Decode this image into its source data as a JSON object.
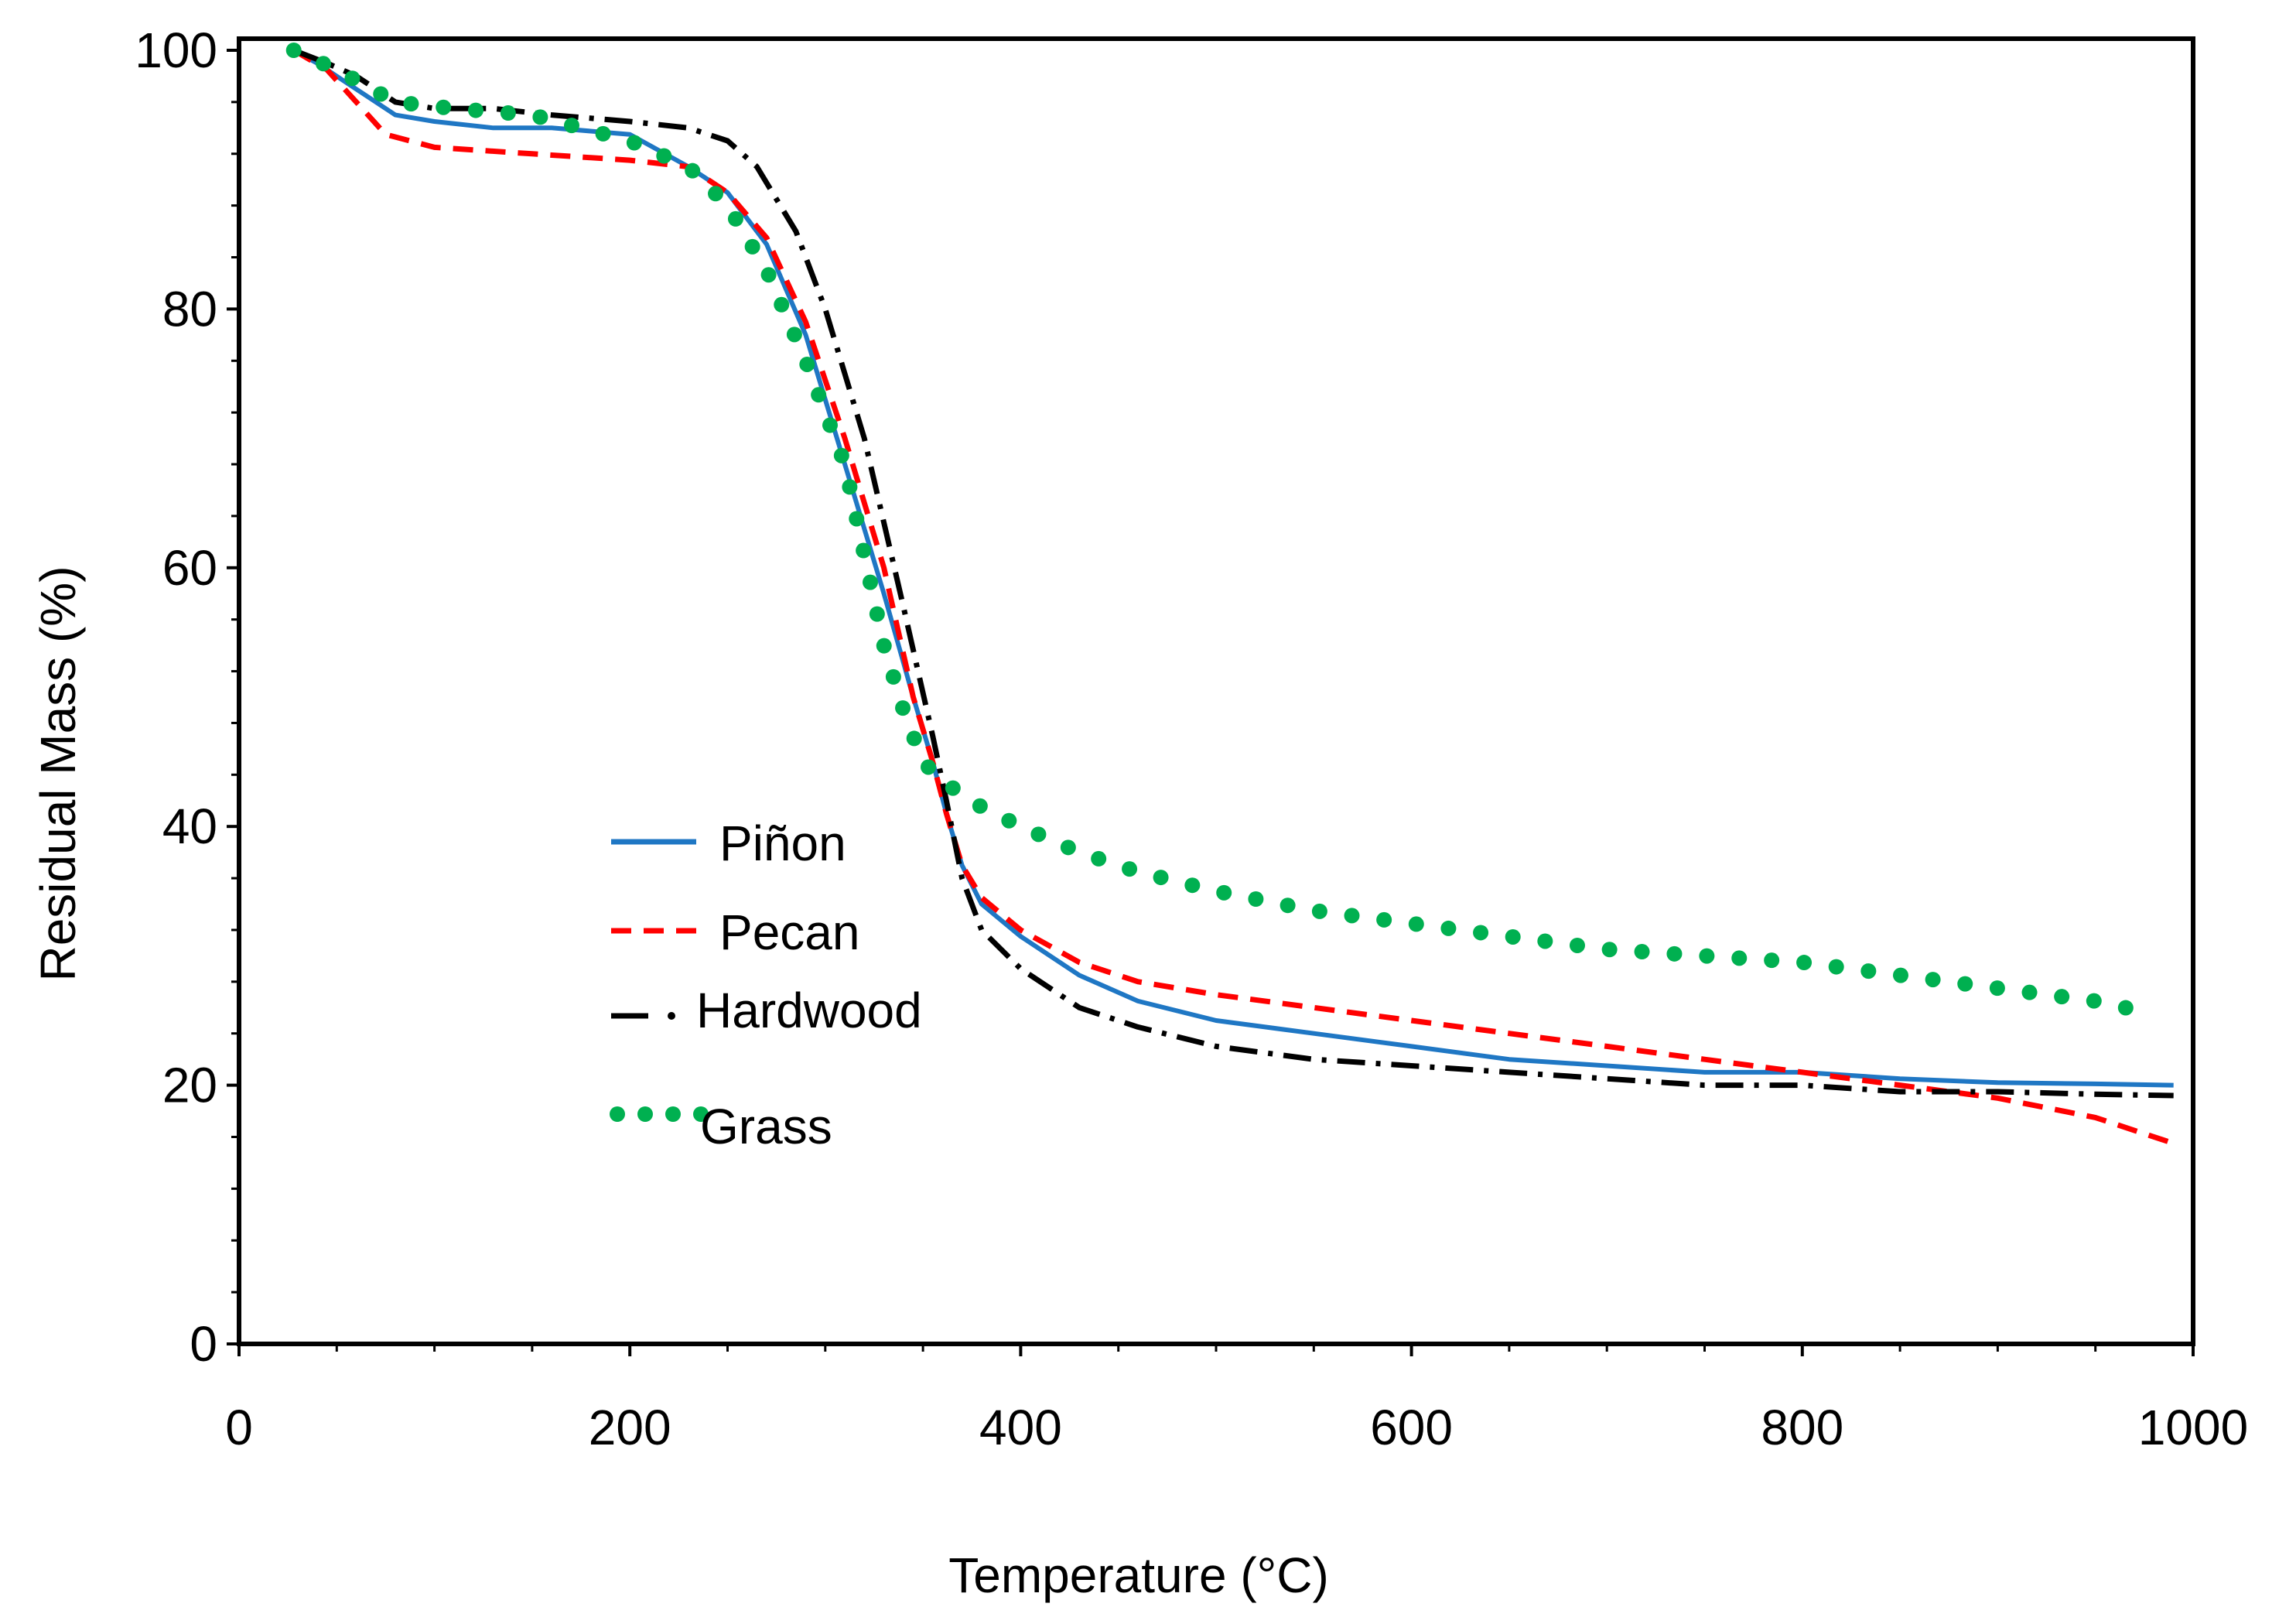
{
  "chart_data": {
    "type": "line",
    "title": "",
    "xlabel": "Temperature (°C)",
    "ylabel": "Residual Mass (%)",
    "xlim": [
      0,
      1000
    ],
    "ylim": [
      0,
      100
    ],
    "x_ticks": [
      0,
      200,
      400,
      600,
      800,
      1000
    ],
    "y_ticks": [
      0,
      20,
      40,
      60,
      80,
      100
    ],
    "grid": false,
    "legend_position": "center-left",
    "series": [
      {
        "name": "Piñon",
        "color": "#1f77c4",
        "style": "solid",
        "x": [
          28,
          40,
          60,
          80,
          100,
          130,
          160,
          200,
          230,
          250,
          270,
          290,
          310,
          330,
          345,
          355,
          362,
          370,
          380,
          400,
          430,
          460,
          500,
          550,
          600,
          650,
          700,
          750,
          800,
          850,
          900,
          950,
          990
        ],
        "y": [
          100,
          99,
          97,
          95,
          94.5,
          94,
          94,
          93.5,
          91,
          89,
          85,
          78,
          68,
          58,
          50,
          45,
          41,
          37,
          34,
          31.5,
          28.5,
          26.5,
          25,
          24,
          23,
          22,
          21.5,
          21,
          21,
          20.5,
          20.2,
          20.1,
          20
        ]
      },
      {
        "name": "Pecan",
        "color": "#ff0000",
        "style": "dashed",
        "x": [
          28,
          45,
          60,
          75,
          100,
          150,
          200,
          230,
          250,
          270,
          290,
          310,
          330,
          345,
          355,
          362,
          370,
          380,
          400,
          430,
          460,
          500,
          550,
          600,
          650,
          700,
          750,
          800,
          850,
          900,
          950,
          990
        ],
        "y": [
          100,
          98.5,
          96,
          93.5,
          92.5,
          92,
          91.5,
          91,
          89,
          85.5,
          79,
          70,
          60,
          50,
          45,
          41,
          37,
          34.5,
          32,
          29.5,
          28,
          27,
          26,
          25,
          24,
          23,
          22,
          21,
          20,
          19,
          17.5,
          15.5
        ]
      },
      {
        "name": "Hardwood",
        "color": "#000000",
        "style": "dashdot",
        "x": [
          28,
          45,
          60,
          80,
          100,
          130,
          160,
          200,
          230,
          250,
          265,
          285,
          300,
          320,
          340,
          355,
          362,
          370,
          380,
          400,
          430,
          460,
          500,
          550,
          600,
          650,
          700,
          750,
          800,
          850,
          900,
          950,
          990
        ],
        "y": [
          100,
          99,
          98,
          96,
          95.5,
          95.5,
          95,
          94.5,
          94,
          93,
          91,
          86,
          80,
          70,
          57,
          47,
          42,
          36,
          32,
          29,
          26,
          24.5,
          23,
          22,
          21.5,
          21,
          20.5,
          20,
          20,
          19.5,
          19.5,
          19.3,
          19.2
        ]
      },
      {
        "name": "Grass",
        "color": "#00b050",
        "style": "dotted",
        "x": [
          28,
          50,
          80,
          110,
          150,
          200,
          230,
          250,
          270,
          290,
          310,
          320,
          330,
          340,
          350,
          360,
          370,
          380,
          400,
          430,
          460,
          500,
          550,
          600,
          650,
          700,
          750,
          800,
          850,
          900,
          950,
          980
        ],
        "y": [
          100,
          98.5,
          96,
          95.5,
          95,
          93,
          91,
          88,
          83,
          76,
          68,
          61,
          54,
          49,
          45,
          43.5,
          42.5,
          41.5,
          40,
          38,
          36.5,
          35,
          33.5,
          32.5,
          31.5,
          30.5,
          30,
          29.5,
          28.5,
          27.5,
          26.5,
          25.5
        ]
      }
    ]
  }
}
